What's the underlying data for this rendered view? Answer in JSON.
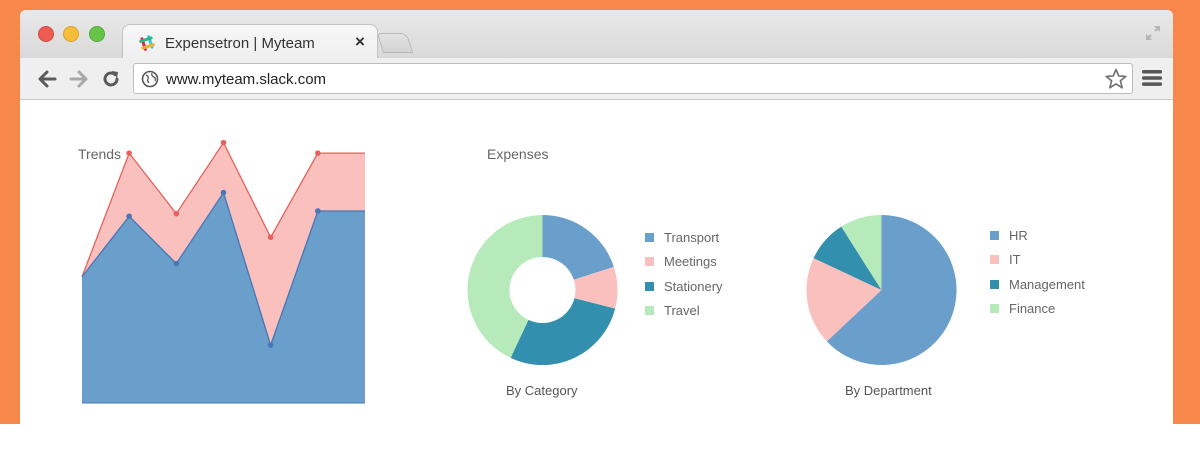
{
  "browser": {
    "tab_title": "Expensetron | Myteam",
    "close_glyph": "×",
    "url": "www.myteam.slack.com",
    "colors": {
      "frame": "#f7874a",
      "light_close": "#ee5b53",
      "light_min": "#f6bd3a",
      "light_max": "#67c44b"
    },
    "icons": [
      "slack-icon",
      "back-icon",
      "forward-icon",
      "reload-icon",
      "globe-icon",
      "star-icon",
      "menu-icon",
      "expand-icon"
    ]
  },
  "sections": {
    "trends_title": "Trends",
    "expenses_title": "Expenses"
  },
  "chart_data": [
    {
      "type": "area",
      "title": "Trends",
      "x": [
        1,
        2,
        3,
        4,
        5,
        6,
        7
      ],
      "ylim": [
        0,
        100
      ],
      "grid": false,
      "series": [
        {
          "color": "#f9c0be",
          "line_color": "#e8615c",
          "values": [
            48,
            95,
            72,
            99,
            63,
            95,
            95
          ],
          "x": [
            0,
            1,
            2,
            3,
            4,
            5,
            6
          ]
        },
        {
          "color": "#6a9ecb",
          "line_color": "#4a76b5",
          "values": [
            48,
            71,
            53,
            80,
            22,
            73,
            73
          ],
          "x": [
            0,
            1,
            2,
            3,
            4,
            5,
            6
          ]
        }
      ]
    },
    {
      "type": "pie",
      "variant": "donut",
      "caption": "By Category",
      "legend_position": "right",
      "series": [
        {
          "name": "Transport",
          "value": 20,
          "color": "#6a9ecb"
        },
        {
          "name": "Meetings",
          "value": 9,
          "color": "#f9c0be"
        },
        {
          "name": "Stationery",
          "value": 28,
          "color": "#328fad"
        },
        {
          "name": "Travel",
          "value": 43,
          "color": "#b7eaba"
        }
      ]
    },
    {
      "type": "pie",
      "caption": "By Department",
      "legend_position": "right",
      "series": [
        {
          "name": "HR",
          "value": 63,
          "color": "#6a9ecb"
        },
        {
          "name": "IT",
          "value": 19,
          "color": "#f9c0be"
        },
        {
          "name": "Management",
          "value": 9,
          "color": "#328fad"
        },
        {
          "name": "Finance",
          "value": 9,
          "color": "#b7eaba"
        }
      ]
    }
  ]
}
